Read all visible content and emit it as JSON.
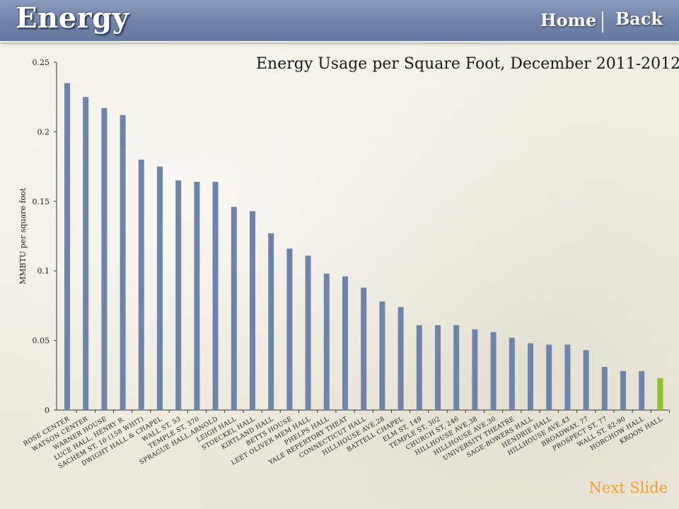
{
  "header": {
    "title": "Energy",
    "home_label": "Home",
    "back_label": "Back"
  },
  "footer": {
    "next_label": "Next Slide"
  },
  "colors": {
    "header": "#7084a9",
    "bar": "#6f84ab",
    "highlight_bar": "#8dc02b",
    "next_link": "#f0a030"
  },
  "chart_data": {
    "type": "bar",
    "title": "Energy Usage per Square Foot, December 2011-2012",
    "xlabel": "",
    "ylabel": "MMBTU per square foot",
    "ylim": [
      0,
      0.25
    ],
    "yticks": [
      "0",
      "0.05",
      "0.1",
      "0.15",
      "0.2",
      "0.25"
    ],
    "grid": false,
    "highlight_index": 32,
    "categories": [
      "ROSE CENTER",
      "WATSON CENTER",
      "WARNER HOUSE",
      "LUCE HALL, HENRY R.",
      "SACHEM ST, 10 (158 WHIT)",
      "DWIGHT HALL & CHAPEL",
      "WALL ST, 53",
      "TEMPLE ST, 370",
      "SPRAGUE HALL,ARNOLD",
      "LEIGH HALL",
      "STOECKEL HALL",
      "KIRTLAND HALL",
      "BETTS HOUSE",
      "LEET OLIVER MEM HALL",
      "PHELPS HALL",
      "YALE REPERTORY THEAT",
      "CONNECTICUT HALL",
      "HILLHOUSE AVE,28",
      "BATTELL CHAPEL",
      "ELM ST, 149",
      "TEMPLE ST, 302",
      "CHURCH ST, 246",
      "HILLHOUSE AVE,38",
      "HILLHOUSE AVE,30",
      "UNIVERSITY THEATRE",
      "SAGE-BOWERS HALL",
      "HENDRIE HALL",
      "HILLHOUSE AVE,43",
      "BROADWAY, 77",
      "PROSPECT ST, 77",
      "WALL ST, 82-90",
      "HORCHOW HALL",
      "KROON HALL"
    ],
    "values": [
      0.235,
      0.225,
      0.217,
      0.212,
      0.18,
      0.175,
      0.165,
      0.164,
      0.164,
      0.146,
      0.143,
      0.127,
      0.116,
      0.111,
      0.098,
      0.096,
      0.088,
      0.078,
      0.074,
      0.061,
      0.061,
      0.061,
      0.058,
      0.056,
      0.052,
      0.048,
      0.047,
      0.047,
      0.043,
      0.031,
      0.028,
      0.028,
      0.023
    ]
  }
}
